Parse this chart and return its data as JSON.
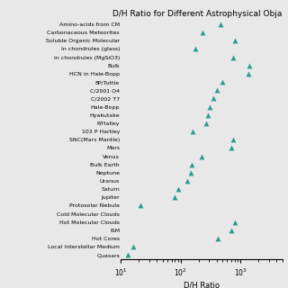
{
  "title": "D/H Ratio for Different Astrophysical Obja",
  "xlabel": "D/H Ratio",
  "objects": [
    "Amino-acids from CM",
    "Carbonaceous Meteorites",
    "Soluble Organic Molecular",
    "in chondrules (glass)",
    "in chondrules (MgSiO3)",
    "Bulk",
    "HCN in Hale-Bopp",
    "8P/Tuttle",
    "C/2001 Q4",
    "C/2002 T7",
    "Hale-Bopp",
    "Hyakutake",
    "P/Halley",
    "103 P Hartley",
    "SNC(Mars Mantle)",
    "Mars",
    "Venus",
    "Bulk Earth",
    "Neptune",
    "Uranus",
    "Saturn",
    "Jupiter",
    "Protosolar Nebula",
    "Cold Molecular Clouds",
    "Hot Molecular Clouds",
    "ISM",
    "Hot Cores",
    "Local Interstellar Medium",
    "Quasars"
  ],
  "dh_values": [
    470,
    230,
    820,
    175,
    760,
    1400,
    1350,
    490,
    400,
    350,
    310,
    290,
    270,
    160,
    750,
    700,
    220,
    155,
    150,
    128,
    90,
    80,
    21,
    null,
    820,
    700,
    420,
    16,
    13
  ],
  "marker_color": "#2a9d8f",
  "bg_color": "#e8e8e8",
  "plot_bg": "#e8e8e8",
  "xlim_lo": 10,
  "xlim_hi": 5000,
  "title_fontsize": 6.5,
  "ytick_fontsize": 4.5,
  "xtick_fontsize": 5.5,
  "xlabel_fontsize": 6,
  "marker_size": 18
}
